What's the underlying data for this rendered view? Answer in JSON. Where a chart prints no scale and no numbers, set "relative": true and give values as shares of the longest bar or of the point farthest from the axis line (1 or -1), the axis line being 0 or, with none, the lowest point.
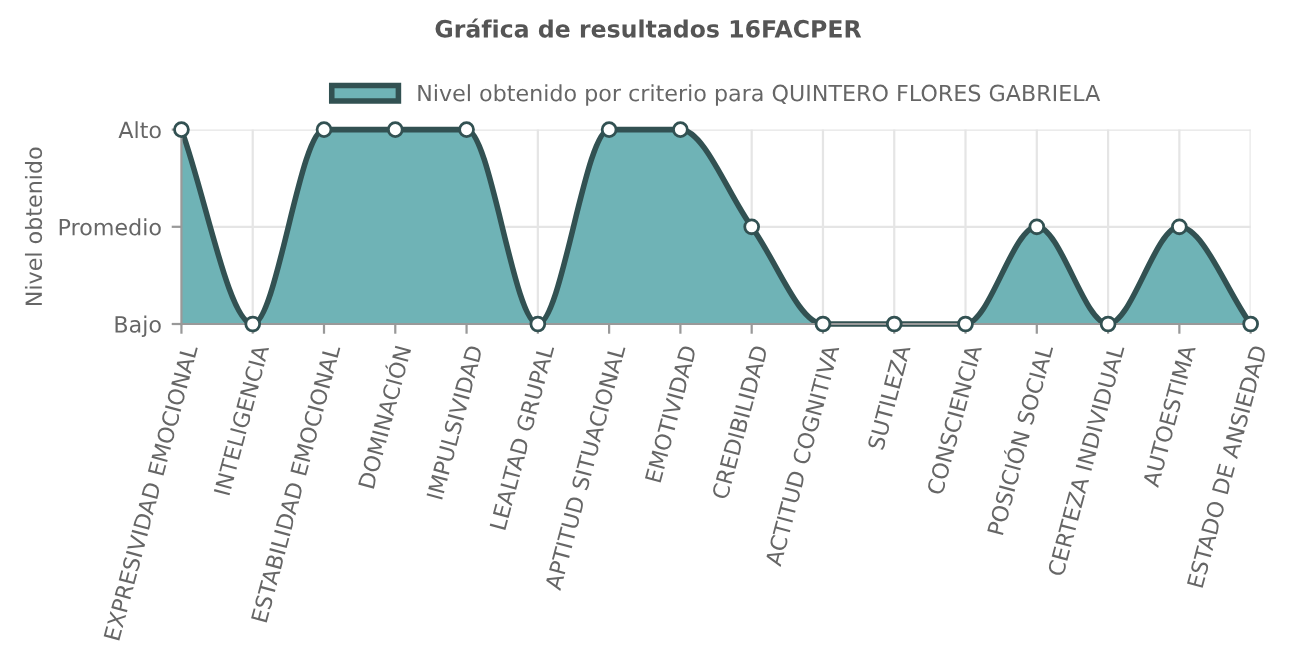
{
  "chart_data": {
    "type": "area",
    "title": "Gráfica de resultados 16FACPER",
    "ylabel": "Nivel obtenido",
    "categories": [
      "EXPRESIVIDAD EMOCIONAL",
      "INTELIGENCIA",
      "ESTABILIDAD EMOCIONAL",
      "DOMINACIÓN",
      "IMPULSIVIDAD",
      "LEALTAD GRUPAL",
      "APTITUD SITUACIONAL",
      "EMOTIVIDAD",
      "CREDIBILIDAD",
      "ACTITUD COGNITIVA",
      "SUTILEZA",
      "CONSCIENCIA",
      "POSICIÓN SOCIAL",
      "CERTEZA INDIVIDUAL",
      "AUTOESTIMA",
      "ESTADO DE ANSIEDAD"
    ],
    "series": [
      {
        "name": "Nivel obtenido por criterio para QUINTERO FLORES GABRIELA",
        "color": "#6fb3b6",
        "values": [
          1,
          0,
          1,
          1,
          1,
          0,
          1,
          1,
          0.5,
          0,
          0,
          0,
          0.5,
          0,
          0.5,
          0
        ]
      }
    ],
    "relative": true,
    "annotations": [
      "Alto",
      "Promedio",
      "Bajo"
    ],
    "grid": true,
    "legend": "top",
    "marker": "circle",
    "line_style": "solid"
  }
}
